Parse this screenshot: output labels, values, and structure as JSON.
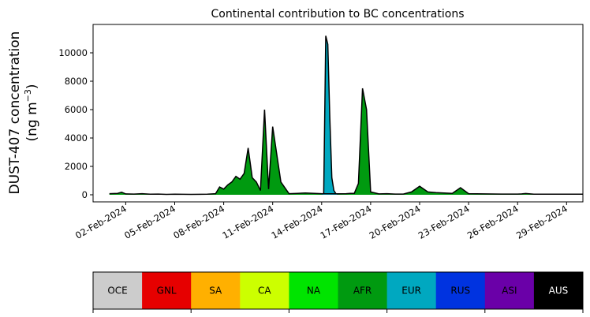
{
  "chart_data": {
    "type": "area",
    "title": "Continental contribution to BC concentrations",
    "ylabel_line1": "DUST-407 concentration",
    "ylabel_line2": "(ng m",
    "ylabel_unit_exp": "−3",
    "ylabel_close": ")",
    "xlabel": "",
    "x_start": "2024-01-31",
    "x_end": "2024-03-01",
    "ylim": [
      -500,
      12000
    ],
    "yticks": [
      0,
      2000,
      4000,
      6000,
      8000,
      10000
    ],
    "xticks": [
      "02-Feb-2024",
      "05-Feb-2024",
      "08-Feb-2024",
      "11-Feb-2024",
      "14-Feb-2024",
      "17-Feb-2024",
      "20-Feb-2024",
      "23-Feb-2024",
      "26-Feb-2024",
      "29-Feb-2024"
    ],
    "legend_placement": "bottom",
    "legend": [
      {
        "name": "OCE",
        "color": "#cccccc",
        "text_color": "#000000"
      },
      {
        "name": "GNL",
        "color": "#e60000",
        "text_color": "#000000"
      },
      {
        "name": "SA",
        "color": "#ffb000",
        "text_color": "#000000"
      },
      {
        "name": "CA",
        "color": "#ccff00",
        "text_color": "#000000"
      },
      {
        "name": "NA",
        "color": "#00e400",
        "text_color": "#000000"
      },
      {
        "name": "AFR",
        "color": "#009a10",
        "text_color": "#000000"
      },
      {
        "name": "EUR",
        "color": "#00a8c0",
        "text_color": "#000000"
      },
      {
        "name": "RUS",
        "color": "#0033e0",
        "text_color": "#000000"
      },
      {
        "name": "ASI",
        "color": "#6a00a8",
        "text_color": "#000000"
      },
      {
        "name": "AUS",
        "color": "#000000",
        "text_color": "#ffffff"
      }
    ],
    "series": [
      {
        "name": "AFR",
        "color": "#009a10",
        "x": [
          "2024-02-01T00:00",
          "2024-02-01T12:00",
          "2024-02-01T18:00",
          "2024-02-02T00:00",
          "2024-02-02T12:00",
          "2024-02-03T00:00",
          "2024-02-03T12:00",
          "2024-02-04T00:00",
          "2024-02-04T12:00",
          "2024-02-05T00:00",
          "2024-02-06T00:00",
          "2024-02-07T00:00",
          "2024-02-07T12:00",
          "2024-02-07T18:00",
          "2024-02-08T00:00",
          "2024-02-08T06:00",
          "2024-02-08T12:00",
          "2024-02-08T18:00",
          "2024-02-09T00:00",
          "2024-02-09T06:00",
          "2024-02-09T12:00",
          "2024-02-09T18:00",
          "2024-02-10T00:00",
          "2024-02-10T06:00",
          "2024-02-10T12:00",
          "2024-02-10T18:00",
          "2024-02-11T00:00",
          "2024-02-11T12:00",
          "2024-02-12T00:00",
          "2024-02-12T12:00",
          "2024-02-13T00:00",
          "2024-02-14T00:00",
          "2024-02-15T00:00",
          "2024-02-15T12:00",
          "2024-02-15T18:00",
          "2024-02-16T00:00",
          "2024-02-16T06:00",
          "2024-02-16T12:00",
          "2024-02-16T18:00",
          "2024-02-17T00:00",
          "2024-02-17T12:00",
          "2024-02-18T00:00",
          "2024-02-18T12:00",
          "2024-02-19T00:00",
          "2024-02-19T12:00",
          "2024-02-20T00:00",
          "2024-02-20T12:00",
          "2024-02-21T00:00",
          "2024-02-21T12:00",
          "2024-02-22T00:00",
          "2024-02-22T12:00",
          "2024-02-23T00:00",
          "2024-02-24T00:00",
          "2024-02-25T00:00",
          "2024-02-26T00:00",
          "2024-02-26T06:00",
          "2024-02-26T12:00",
          "2024-02-27T00:00",
          "2024-02-28T00:00",
          "2024-02-29T00:00",
          "2024-03-01T00:00"
        ],
        "values": [
          80,
          100,
          180,
          60,
          50,
          80,
          40,
          50,
          30,
          40,
          30,
          40,
          80,
          550,
          400,
          700,
          900,
          1300,
          1100,
          1500,
          3300,
          1200,
          900,
          300,
          6000,
          400,
          4800,
          900,
          80,
          100,
          120,
          80,
          70,
          80,
          100,
          100,
          800,
          7500,
          6000,
          200,
          60,
          80,
          50,
          50,
          200,
          600,
          200,
          150,
          120,
          100,
          500,
          80,
          60,
          50,
          50,
          60,
          90,
          40,
          40,
          40,
          40
        ]
      },
      {
        "name": "EUR",
        "color": "#00a8c0",
        "x": [
          "2024-02-14T00:00",
          "2024-02-14T03:00",
          "2024-02-14T06:00",
          "2024-02-14T09:00",
          "2024-02-14T12:00",
          "2024-02-14T15:00",
          "2024-02-14T18:00",
          "2024-02-14T21:00",
          "2024-02-15T00:00"
        ],
        "values": [
          50,
          100,
          11200,
          10600,
          5500,
          1200,
          300,
          80,
          50
        ]
      }
    ]
  }
}
